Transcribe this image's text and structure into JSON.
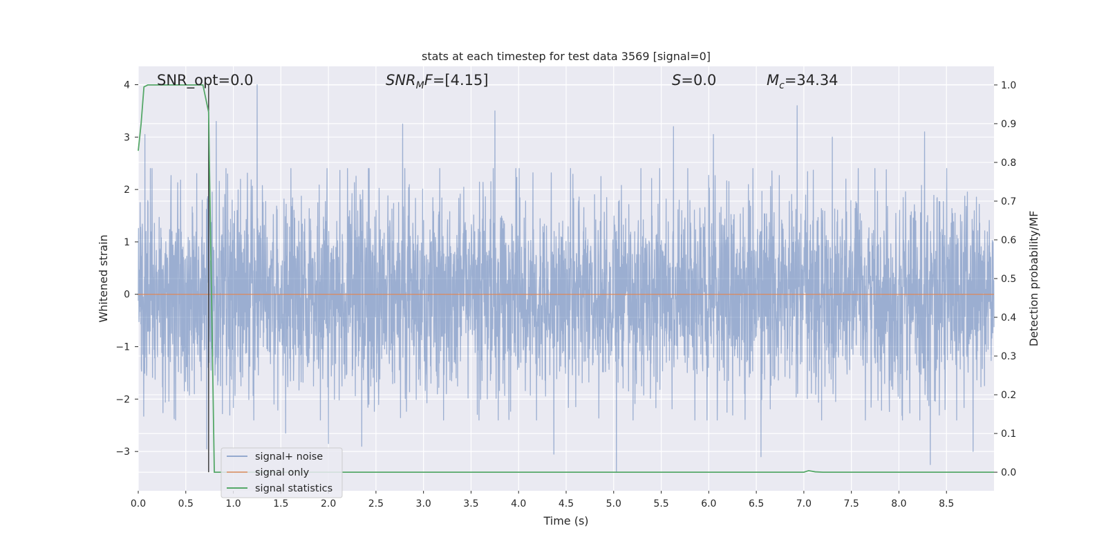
{
  "chart_data": {
    "type": "line",
    "title": "stats at each timestep for test data 3569 [signal=0]",
    "xlabel": "Time (s)",
    "ylabel_left": "Whitened strain",
    "ylabel_right": "Detection probability/MF",
    "xlim": [
      0,
      9
    ],
    "ylim_left": [
      -3.75,
      4.35
    ],
    "ylim_right": [
      -0.048,
      1.048
    ],
    "x_ticks": [
      0.0,
      0.5,
      1.0,
      1.5,
      2.0,
      2.5,
      3.0,
      3.5,
      4.0,
      4.5,
      5.0,
      5.5,
      6.0,
      6.5,
      7.0,
      7.5,
      8.0,
      8.5
    ],
    "x_tick_labels": [
      "0.0",
      "0.5",
      "1.0",
      "1.5",
      "2.0",
      "2.5",
      "3.0",
      "3.5",
      "4.0",
      "4.5",
      "5.0",
      "5.5",
      "6.0",
      "6.5",
      "7.0",
      "7.5",
      "8.0",
      "8.5"
    ],
    "y_ticks_left": [
      -3,
      -2,
      -1,
      0,
      1,
      2,
      3,
      4
    ],
    "y_tick_labels_left": [
      "−3",
      "−2",
      "−1",
      "0",
      "1",
      "2",
      "3",
      "4"
    ],
    "y_ticks_right": [
      0.0,
      0.1,
      0.2,
      0.3,
      0.4,
      0.5,
      0.6,
      0.7,
      0.8,
      0.9,
      1.0
    ],
    "y_tick_labels_right": [
      "0.0",
      "0.1",
      "0.2",
      "0.3",
      "0.4",
      "0.5",
      "0.6",
      "0.7",
      "0.8",
      "0.9",
      "1.0"
    ],
    "grid": true,
    "legend_position": "lower-left",
    "annotations": [
      {
        "text": "SNR_opt=0.0"
      },
      {
        "text": "SNR_M F=[4.15]"
      },
      {
        "text": "S=0.0"
      },
      {
        "text": "M_c=34.34"
      }
    ],
    "series": [
      {
        "name": "signal+ noise",
        "axis": "left",
        "color": "#4c72b0",
        "opacity": 0.5,
        "description": "dense whitened noise strain sampled over 0-9 s; peaks listed",
        "peaks": [
          {
            "x": 0.07,
            "y": 3.05
          },
          {
            "x": 0.72,
            "y": -2.95
          },
          {
            "x": 0.82,
            "y": 3.3
          },
          {
            "x": 1.25,
            "y": 4.0
          },
          {
            "x": 1.55,
            "y": -2.65
          },
          {
            "x": 2.0,
            "y": -2.85
          },
          {
            "x": 2.35,
            "y": -2.9
          },
          {
            "x": 2.78,
            "y": 3.25
          },
          {
            "x": 3.75,
            "y": 3.5
          },
          {
            "x": 4.37,
            "y": -3.05
          },
          {
            "x": 5.03,
            "y": -3.4
          },
          {
            "x": 5.63,
            "y": 3.2
          },
          {
            "x": 6.05,
            "y": 3.05
          },
          {
            "x": 6.55,
            "y": -3.1
          },
          {
            "x": 6.93,
            "y": 3.6
          },
          {
            "x": 7.3,
            "y": 3.0
          },
          {
            "x": 8.27,
            "y": 3.1
          },
          {
            "x": 8.33,
            "y": -3.25
          },
          {
            "x": 8.78,
            "y": 3.1
          },
          {
            "x": 8.78,
            "y": -3.0
          }
        ]
      },
      {
        "name": "signal only",
        "axis": "left",
        "color": "#dd8452",
        "x": [
          0,
          9
        ],
        "y": [
          0,
          0
        ]
      },
      {
        "name": "signal statistics",
        "axis": "right",
        "color": "#55a868",
        "x": [
          0.0,
          0.03,
          0.06,
          0.1,
          0.15,
          0.2,
          0.3,
          0.4,
          0.5,
          0.6,
          0.68,
          0.74,
          0.8,
          1.0,
          2.0,
          3.0,
          4.0,
          5.0,
          6.0,
          7.0,
          7.05,
          7.12,
          7.2,
          8.0,
          9.0
        ],
        "y": [
          0.83,
          0.9,
          0.995,
          1.0,
          1.0,
          1.0,
          1.0,
          1.0,
          1.0,
          1.0,
          1.0,
          0.93,
          0.0,
          0.0,
          0.0,
          0.0,
          0.0,
          0.0,
          0.0,
          0.0,
          0.004,
          0.001,
          0.0,
          0.0,
          0.0
        ]
      }
    ],
    "vertical_marker": {
      "x": 0.74,
      "color": "#404040"
    }
  }
}
